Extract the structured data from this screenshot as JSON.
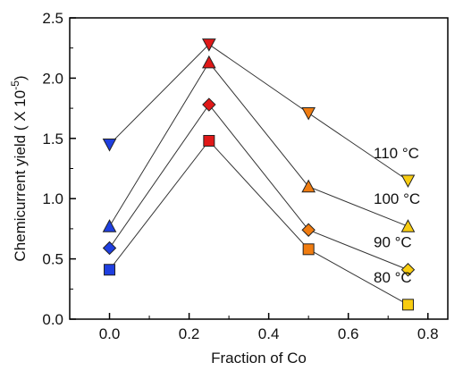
{
  "chart_data": {
    "type": "scatter",
    "xlabel": "Fraction of Co",
    "ylabel": "Chemicurrent yield ( X 10",
    "ylabel_exponent": "-5",
    "ylabel_suffix": ")",
    "xlim": [
      -0.1,
      0.85
    ],
    "ylim": [
      0.0,
      2.5
    ],
    "xticks": [
      "0.0",
      "0.2",
      "0.4",
      "0.6",
      "0.8"
    ],
    "yticks": [
      "0.0",
      "0.5",
      "1.0",
      "1.5",
      "2.0",
      "2.5"
    ],
    "x": [
      0.0,
      0.25,
      0.5,
      0.75
    ],
    "point_colors": [
      "#1f3fe0",
      "#e01818",
      "#f07c10",
      "#f8cc10"
    ],
    "grid": false,
    "series": [
      {
        "name": "110 °C",
        "marker": "triangle-down",
        "values": [
          1.45,
          2.28,
          1.71,
          1.15
        ]
      },
      {
        "name": "100 °C",
        "marker": "triangle-up",
        "values": [
          0.77,
          2.13,
          1.1,
          0.77
        ]
      },
      {
        "name": "90 °C",
        "marker": "diamond",
        "values": [
          0.59,
          1.78,
          0.74,
          0.41
        ]
      },
      {
        "name": "80 °C",
        "marker": "square",
        "values": [
          0.41,
          1.48,
          0.58,
          0.12
        ]
      }
    ]
  }
}
